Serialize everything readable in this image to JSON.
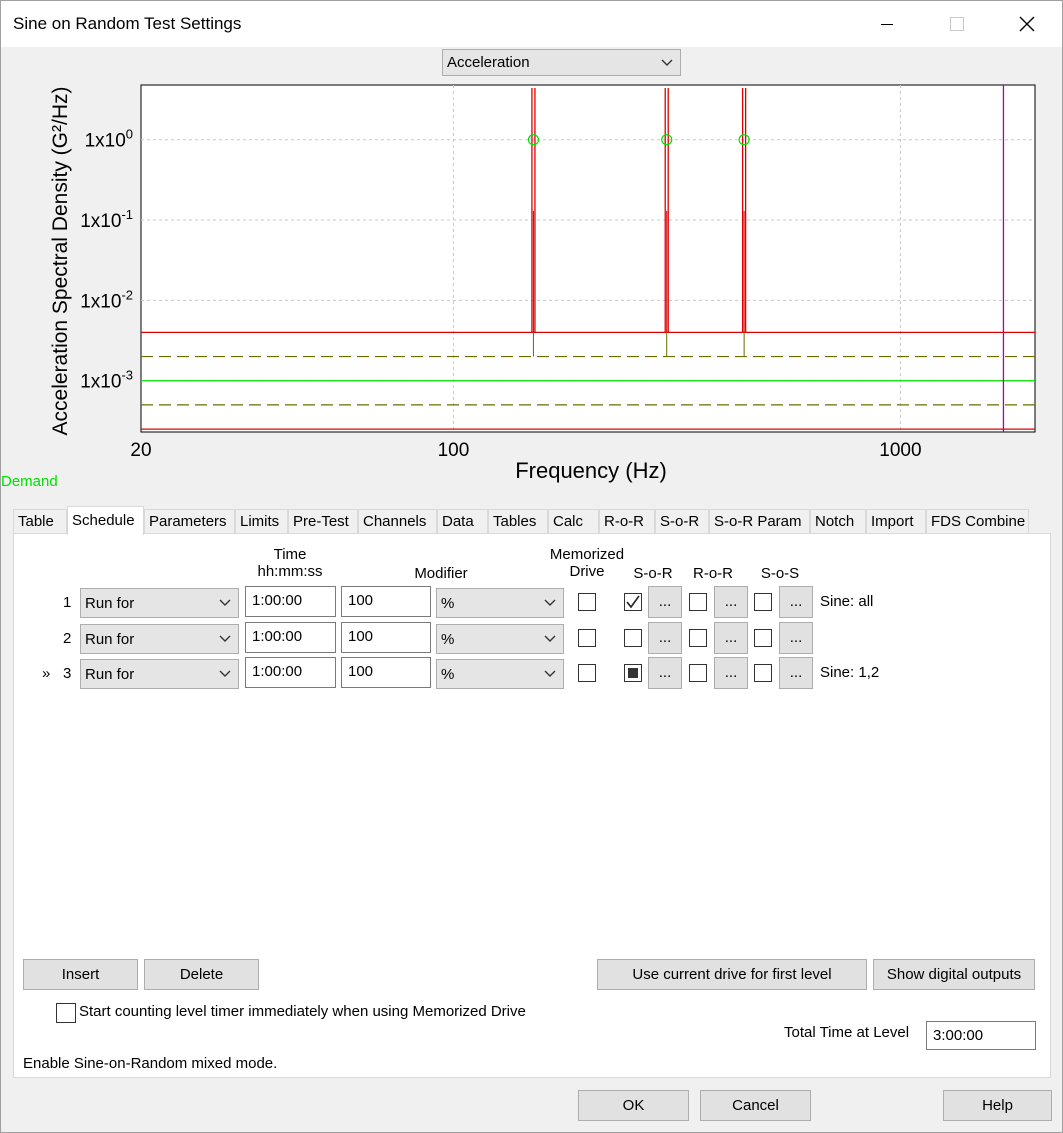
{
  "window": {
    "title": "Sine on Random Test Settings"
  },
  "view_select": {
    "value": "Acceleration"
  },
  "demand_label": "Demand",
  "colors": {
    "demand": "#00e000",
    "abort": "#dd0000",
    "alarm": "#6b6b00",
    "cursor": "#aa00aa"
  },
  "chart_data": {
    "type": "line",
    "xlabel": "Frequency (Hz)",
    "ylabel": "Acceleration Spectral Density (G²/Hz)",
    "x_scale": "log",
    "y_scale": "log",
    "xlim": [
      20,
      2000
    ],
    "ylim": [
      0.00023,
      4.8
    ],
    "x_ticks": [
      {
        "v": 20,
        "label": "20"
      },
      {
        "v": 100,
        "label": "100"
      },
      {
        "v": 1000,
        "label": "1000"
      }
    ],
    "y_ticks": [
      {
        "v": 1,
        "label": "1x10",
        "exp": "0"
      },
      {
        "v": 0.1,
        "label": "1x10",
        "exp": "-1"
      },
      {
        "v": 0.01,
        "label": "1x10",
        "exp": "-2"
      },
      {
        "v": 0.001,
        "label": "1x10",
        "exp": "-3"
      }
    ],
    "grid": true,
    "series": [
      {
        "style": "demand",
        "level": 0.001
      },
      {
        "style": "alarm-high",
        "level": 0.002
      },
      {
        "style": "alarm-low",
        "level": 0.0005
      },
      {
        "style": "abort-high",
        "level": 0.004
      },
      {
        "style": "abort-low",
        "level": 0.00025
      }
    ],
    "sines": [
      {
        "freq": 151,
        "peak": 4.4,
        "demand": 1.0
      },
      {
        "freq": 300,
        "peak": 4.4,
        "demand": 1.0
      },
      {
        "freq": 447,
        "peak": 4.4,
        "demand": 1.0
      }
    ],
    "cursor_freq": 1700
  },
  "tabs": [
    {
      "label": "Table"
    },
    {
      "label": "Schedule"
    },
    {
      "label": "Parameters"
    },
    {
      "label": "Limits"
    },
    {
      "label": "Pre-Test"
    },
    {
      "label": "Channels"
    },
    {
      "label": "Data"
    },
    {
      "label": "Tables"
    },
    {
      "label": "Calc"
    },
    {
      "label": "R-o-R"
    },
    {
      "label": "S-o-R"
    },
    {
      "label": "S-o-R Param"
    },
    {
      "label": "Notch"
    },
    {
      "label": "Import"
    },
    {
      "label": "FDS Combine"
    }
  ],
  "headers": {
    "time_1": "Time",
    "time_2": "hh:mm:ss",
    "modifier": "Modifier",
    "mem_1": "Memorized",
    "mem_2": "Drive",
    "sor": "S-o-R",
    "ror": "R-o-R",
    "sos": "S-o-S"
  },
  "rows": [
    {
      "num": "1",
      "marker": "",
      "action": "Run for",
      "time": "1:00:00",
      "value": "100",
      "unit": "%",
      "sine": "Sine: all"
    },
    {
      "num": "2",
      "marker": "",
      "action": "Run for",
      "time": "1:00:00",
      "value": "100",
      "unit": "%",
      "sine": ""
    },
    {
      "num": "3",
      "marker": "»",
      "action": "Run for",
      "time": "1:00:00",
      "value": "100",
      "unit": "%",
      "sine": "Sine: 1,2"
    }
  ],
  "dots": "...",
  "buttons": {
    "insert": "Insert",
    "delete": "Delete",
    "use_current": "Use current drive for first level",
    "show_digital": "Show digital outputs",
    "ok": "OK",
    "cancel": "Cancel",
    "help": "Help"
  },
  "start_counting_label": "Start counting level timer immediately when using Memorized Drive",
  "total_time": {
    "label": "Total Time at Level",
    "value": "3:00:00"
  },
  "status_text": "Enable Sine-on-Random mixed mode."
}
